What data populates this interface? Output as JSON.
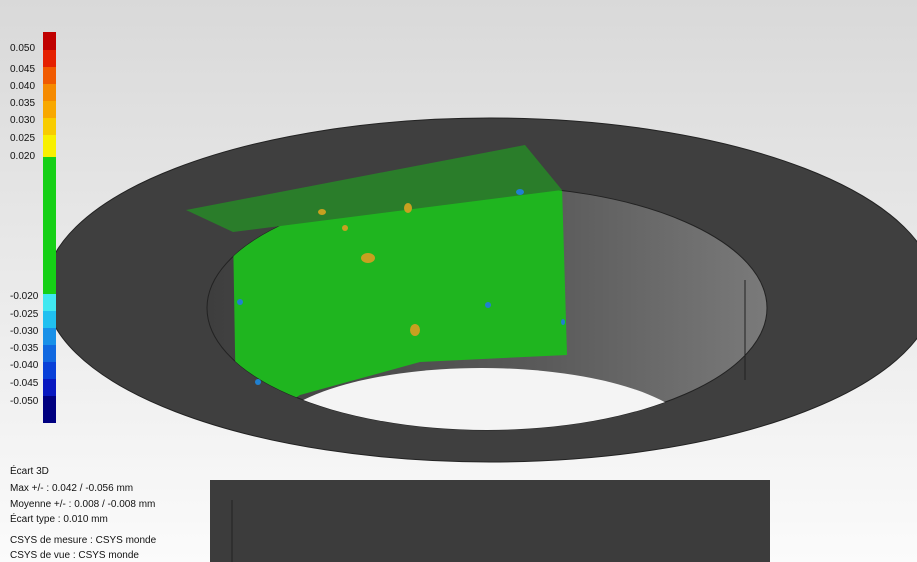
{
  "legend": {
    "labels": [
      "0.050",
      "0.045",
      "0.040",
      "0.035",
      "0.030",
      "0.025",
      "0.020",
      "-0.020",
      "-0.025",
      "-0.030",
      "-0.035",
      "-0.040",
      "-0.045",
      "-0.050"
    ]
  },
  "info": {
    "title": "Écart 3D",
    "max": "Max +/- : 0.042 / -0.056 mm",
    "mean": "Moyenne +/- : 0.008 / -0.008 mm",
    "std": "Écart type : 0.010 mm",
    "csys_measure": "CSYS de mesure : CSYS monde",
    "csys_view": "CSYS de vue : CSYS monde"
  }
}
